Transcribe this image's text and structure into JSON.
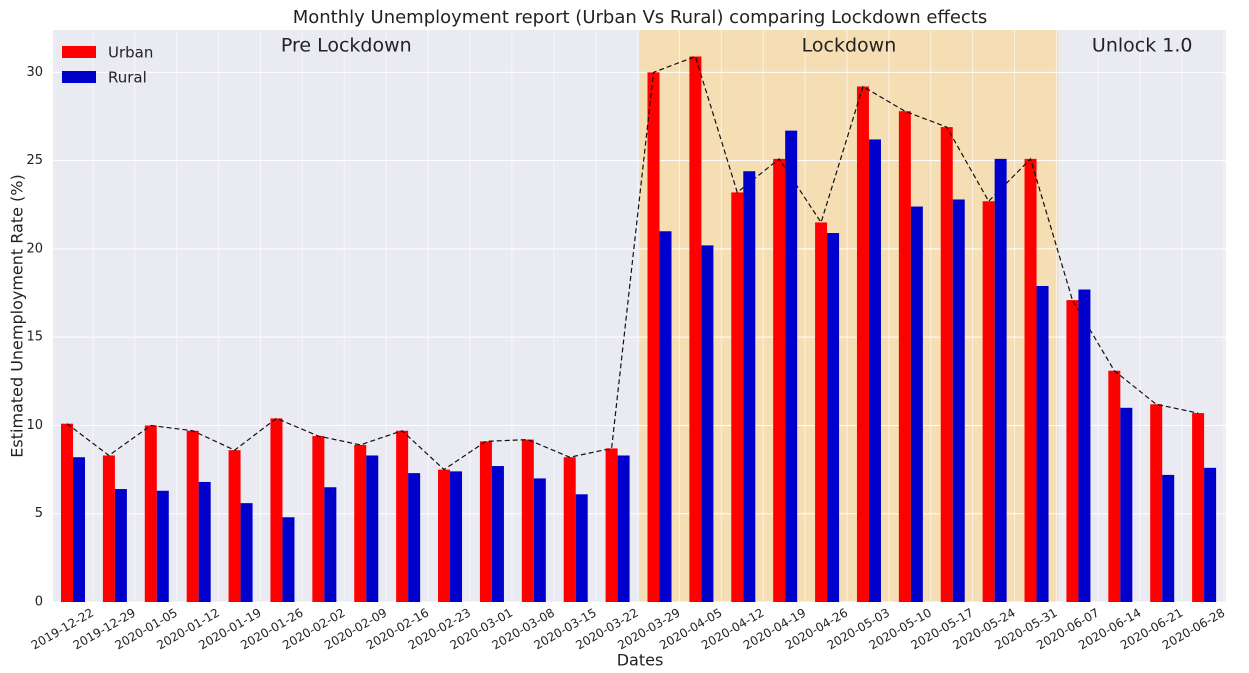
{
  "chart_data": {
    "type": "bar",
    "title": "Monthly Unemployment report (Urban Vs Rural) comparing Lockdown effects",
    "x_label": "Dates",
    "y_label": "Estimated Unemployment Rate (%)",
    "categories": [
      "2019-12-22",
      "2019-12-29",
      "2020-01-05",
      "2020-01-12",
      "2020-01-19",
      "2020-01-26",
      "2020-02-02",
      "2020-02-09",
      "2020-02-16",
      "2020-02-23",
      "2020-03-01",
      "2020-03-08",
      "2020-03-15",
      "2020-03-22",
      "2020-03-29",
      "2020-04-05",
      "2020-04-12",
      "2020-04-19",
      "2020-04-26",
      "2020-05-03",
      "2020-05-10",
      "2020-05-17",
      "2020-05-24",
      "2020-05-31",
      "2020-06-07",
      "2020-06-14",
      "2020-06-21",
      "2020-06-28"
    ],
    "series": [
      {
        "name": "Urban",
        "color": "#ff0000",
        "line": true,
        "values": [
          10.1,
          8.3,
          10.0,
          9.7,
          8.6,
          10.4,
          9.4,
          8.9,
          9.7,
          7.5,
          9.1,
          9.2,
          8.2,
          8.7,
          30.0,
          30.9,
          23.2,
          25.1,
          21.5,
          29.2,
          27.8,
          26.9,
          22.7,
          25.1,
          17.1,
          13.1,
          11.2,
          10.7
        ]
      },
      {
        "name": "Rural",
        "color": "#0000cc",
        "values": [
          8.2,
          6.4,
          6.3,
          6.8,
          5.6,
          4.8,
          6.5,
          8.3,
          7.3,
          7.4,
          7.7,
          7.0,
          6.1,
          8.3,
          21.0,
          20.2,
          24.4,
          26.7,
          20.9,
          26.2,
          22.4,
          22.8,
          25.1,
          17.9,
          17.7,
          11.0,
          7.2,
          7.6
        ]
      }
    ],
    "phases": [
      {
        "label": "Pre Lockdown",
        "start": "2019-12-22",
        "end": "2020-03-22"
      },
      {
        "label": "Lockdown",
        "start": "2020-03-29",
        "end": "2020-05-31",
        "color": "#f5deb3"
      },
      {
        "label": "Unlock 1.0",
        "start": "2020-06-07",
        "end": "2020-06-28"
      }
    ],
    "ylim": [
      0,
      32.4
    ],
    "yticks": [
      0,
      5,
      10,
      15,
      20,
      25,
      30
    ],
    "grid": true,
    "legend": "upper-left"
  }
}
